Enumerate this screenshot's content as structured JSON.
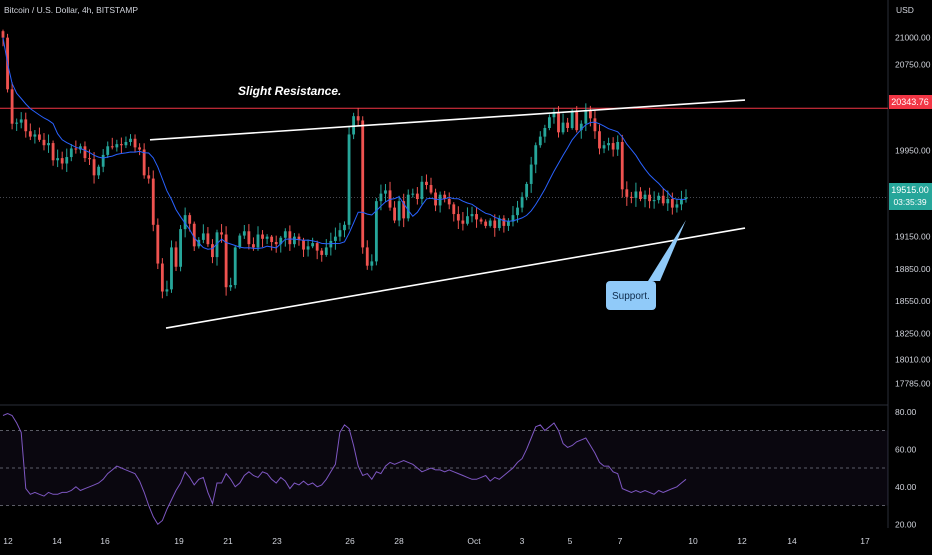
{
  "header": {
    "title": "Bitcoin / U.S. Dollar, 4h, BITSTAMP",
    "currency": "USD"
  },
  "colors": {
    "bull": "#26a69a",
    "bear": "#ef5350",
    "ma": "#2962ff",
    "rsi": "#7e57c2",
    "resistance_line": "#f23645",
    "trendline": "#ffffff",
    "price_tag": "#26a69a",
    "support_note": "#90caf9"
  },
  "annotations": {
    "resistance_label": "Slight Resistance.",
    "support_label": "Support."
  },
  "price_badges": {
    "resistance_value": "20343.76",
    "current_value": "19515.00",
    "countdown": "03:35:39"
  },
  "chart_data": [
    {
      "type": "candlestick",
      "title": "Bitcoin / U.S. Dollar, 4h, BITSTAMP",
      "ylabel": "USD",
      "y_ticks": [
        21000,
        20750,
        19950,
        19150,
        18850,
        18550,
        18250,
        18010,
        17785
      ],
      "ylim": [
        17650,
        21350
      ],
      "x_tick_labels": [
        "12",
        "14",
        "16",
        "19",
        "21",
        "23",
        "26",
        "28",
        "Oct",
        "3",
        "5",
        "7",
        "10",
        "12",
        "14",
        "17"
      ],
      "resistance_level": 20343.76,
      "last_price": 19515.0,
      "trendlines": [
        {
          "name": "resistance",
          "from": [
            150,
            20050
          ],
          "to": [
            745,
            20420
          ]
        },
        {
          "name": "support",
          "from": [
            166,
            18300
          ],
          "to": [
            745,
            19230
          ]
        }
      ],
      "close": [
        21000,
        20520,
        20200,
        20210,
        20240,
        20130,
        20080,
        20100,
        20050,
        20000,
        20020,
        19860,
        19880,
        19830,
        19890,
        19970,
        19960,
        19990,
        19880,
        19870,
        19720,
        19800,
        19910,
        19990,
        19980,
        20010,
        20000,
        20030,
        20060,
        19980,
        19960,
        19720,
        19690,
        19260,
        18900,
        18640,
        18660,
        19050,
        18870,
        19220,
        19350,
        19270,
        19060,
        19120,
        19180,
        19080,
        18960,
        19190,
        19170,
        18680,
        18700,
        19050,
        19160,
        19200,
        19080,
        19050,
        19170,
        19130,
        19150,
        19100,
        19080,
        19140,
        19200,
        19080,
        19150,
        19120,
        19030,
        19060,
        19090,
        19020,
        18980,
        19050,
        19110,
        19150,
        19210,
        19260,
        20100,
        20270,
        20230,
        19050,
        18880,
        18920,
        19480,
        19550,
        19580,
        19420,
        19300,
        19480,
        19320,
        19540,
        19550,
        19500,
        19660,
        19630,
        19560,
        19440,
        19540,
        19500,
        19450,
        19360,
        19300,
        19270,
        19340,
        19360,
        19310,
        19290,
        19250,
        19300,
        19230,
        19320,
        19250,
        19290,
        19350,
        19420,
        19520,
        19640,
        19820,
        20000,
        20080,
        20160,
        20260,
        20310,
        20120,
        20210,
        20160,
        20320,
        20140,
        20200,
        20320,
        20250,
        20130,
        19970,
        20000,
        20020,
        19960,
        20030,
        19590,
        19520,
        19510,
        19570,
        19500,
        19540,
        19480,
        19490,
        19530,
        19460,
        19500,
        19420,
        19450,
        19500,
        19515
      ],
      "rsi": {
        "name": "RSI",
        "y_ticks": [
          80,
          60,
          40,
          20
        ],
        "ylim": [
          18,
          82
        ],
        "bands": [
          70,
          50,
          30
        ],
        "values": [
          78,
          79,
          78,
          74,
          69,
          39,
          36,
          37,
          36,
          35,
          37,
          36,
          36,
          37,
          37,
          38,
          40,
          38,
          39,
          40,
          41,
          42,
          44,
          47,
          49,
          51,
          50,
          49,
          48,
          47,
          43,
          37,
          30,
          24,
          20,
          22,
          28,
          33,
          38,
          42,
          48,
          45,
          41,
          44,
          45,
          37,
          31,
          42,
          42,
          47,
          44,
          40,
          42,
          46,
          48,
          46,
          45,
          48,
          47,
          44,
          42,
          45,
          43,
          39,
          42,
          41,
          43,
          41,
          42,
          40,
          41,
          44,
          48,
          52,
          69,
          73,
          71,
          62,
          51,
          46,
          47,
          44,
          48,
          47,
          51,
          53,
          52,
          53,
          54,
          53,
          52,
          50,
          48,
          49,
          50,
          49,
          49,
          48,
          49,
          48,
          47,
          46,
          45,
          44,
          44,
          45,
          46,
          43,
          45,
          44,
          46,
          48,
          50,
          53,
          55,
          60,
          66,
          72,
          73,
          70,
          72,
          74,
          70,
          63,
          61,
          62,
          64,
          65,
          66,
          62,
          58,
          53,
          51,
          51,
          48,
          47,
          39,
          38,
          37,
          38,
          37,
          38,
          37,
          36,
          38,
          37,
          38,
          39,
          40,
          42,
          44
        ]
      }
    }
  ]
}
